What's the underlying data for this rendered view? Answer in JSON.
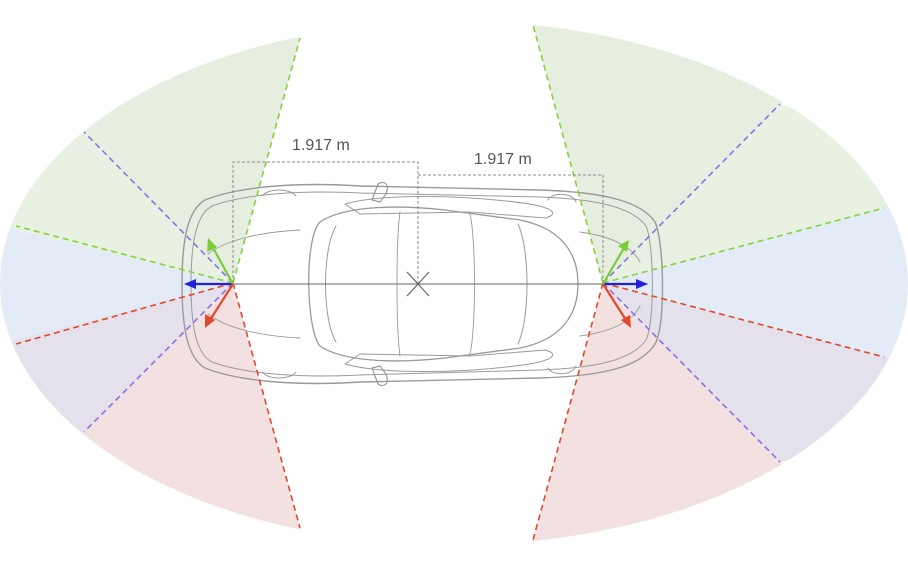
{
  "dimensions": {
    "left_label": "1.917 m",
    "right_label": "1.917 m"
  },
  "colors": {
    "green_zone": "#e6efdf",
    "blue_zone": "#e3ecf6",
    "red_zone": "#f3e0e0",
    "purple_zone": "#e4e0ec",
    "green_axis": "#7ccc3a",
    "blue_axis": "#2222dd",
    "red_axis": "#e04a2a",
    "purple_dash": "#8a70e6",
    "green_dash": "#86d13e",
    "red_dash": "#dd4a2e",
    "car_outline": "#9a9a9a",
    "dimension_line": "#8a8a8a"
  },
  "icons": {
    "center_marker": "x-cross-icon"
  }
}
